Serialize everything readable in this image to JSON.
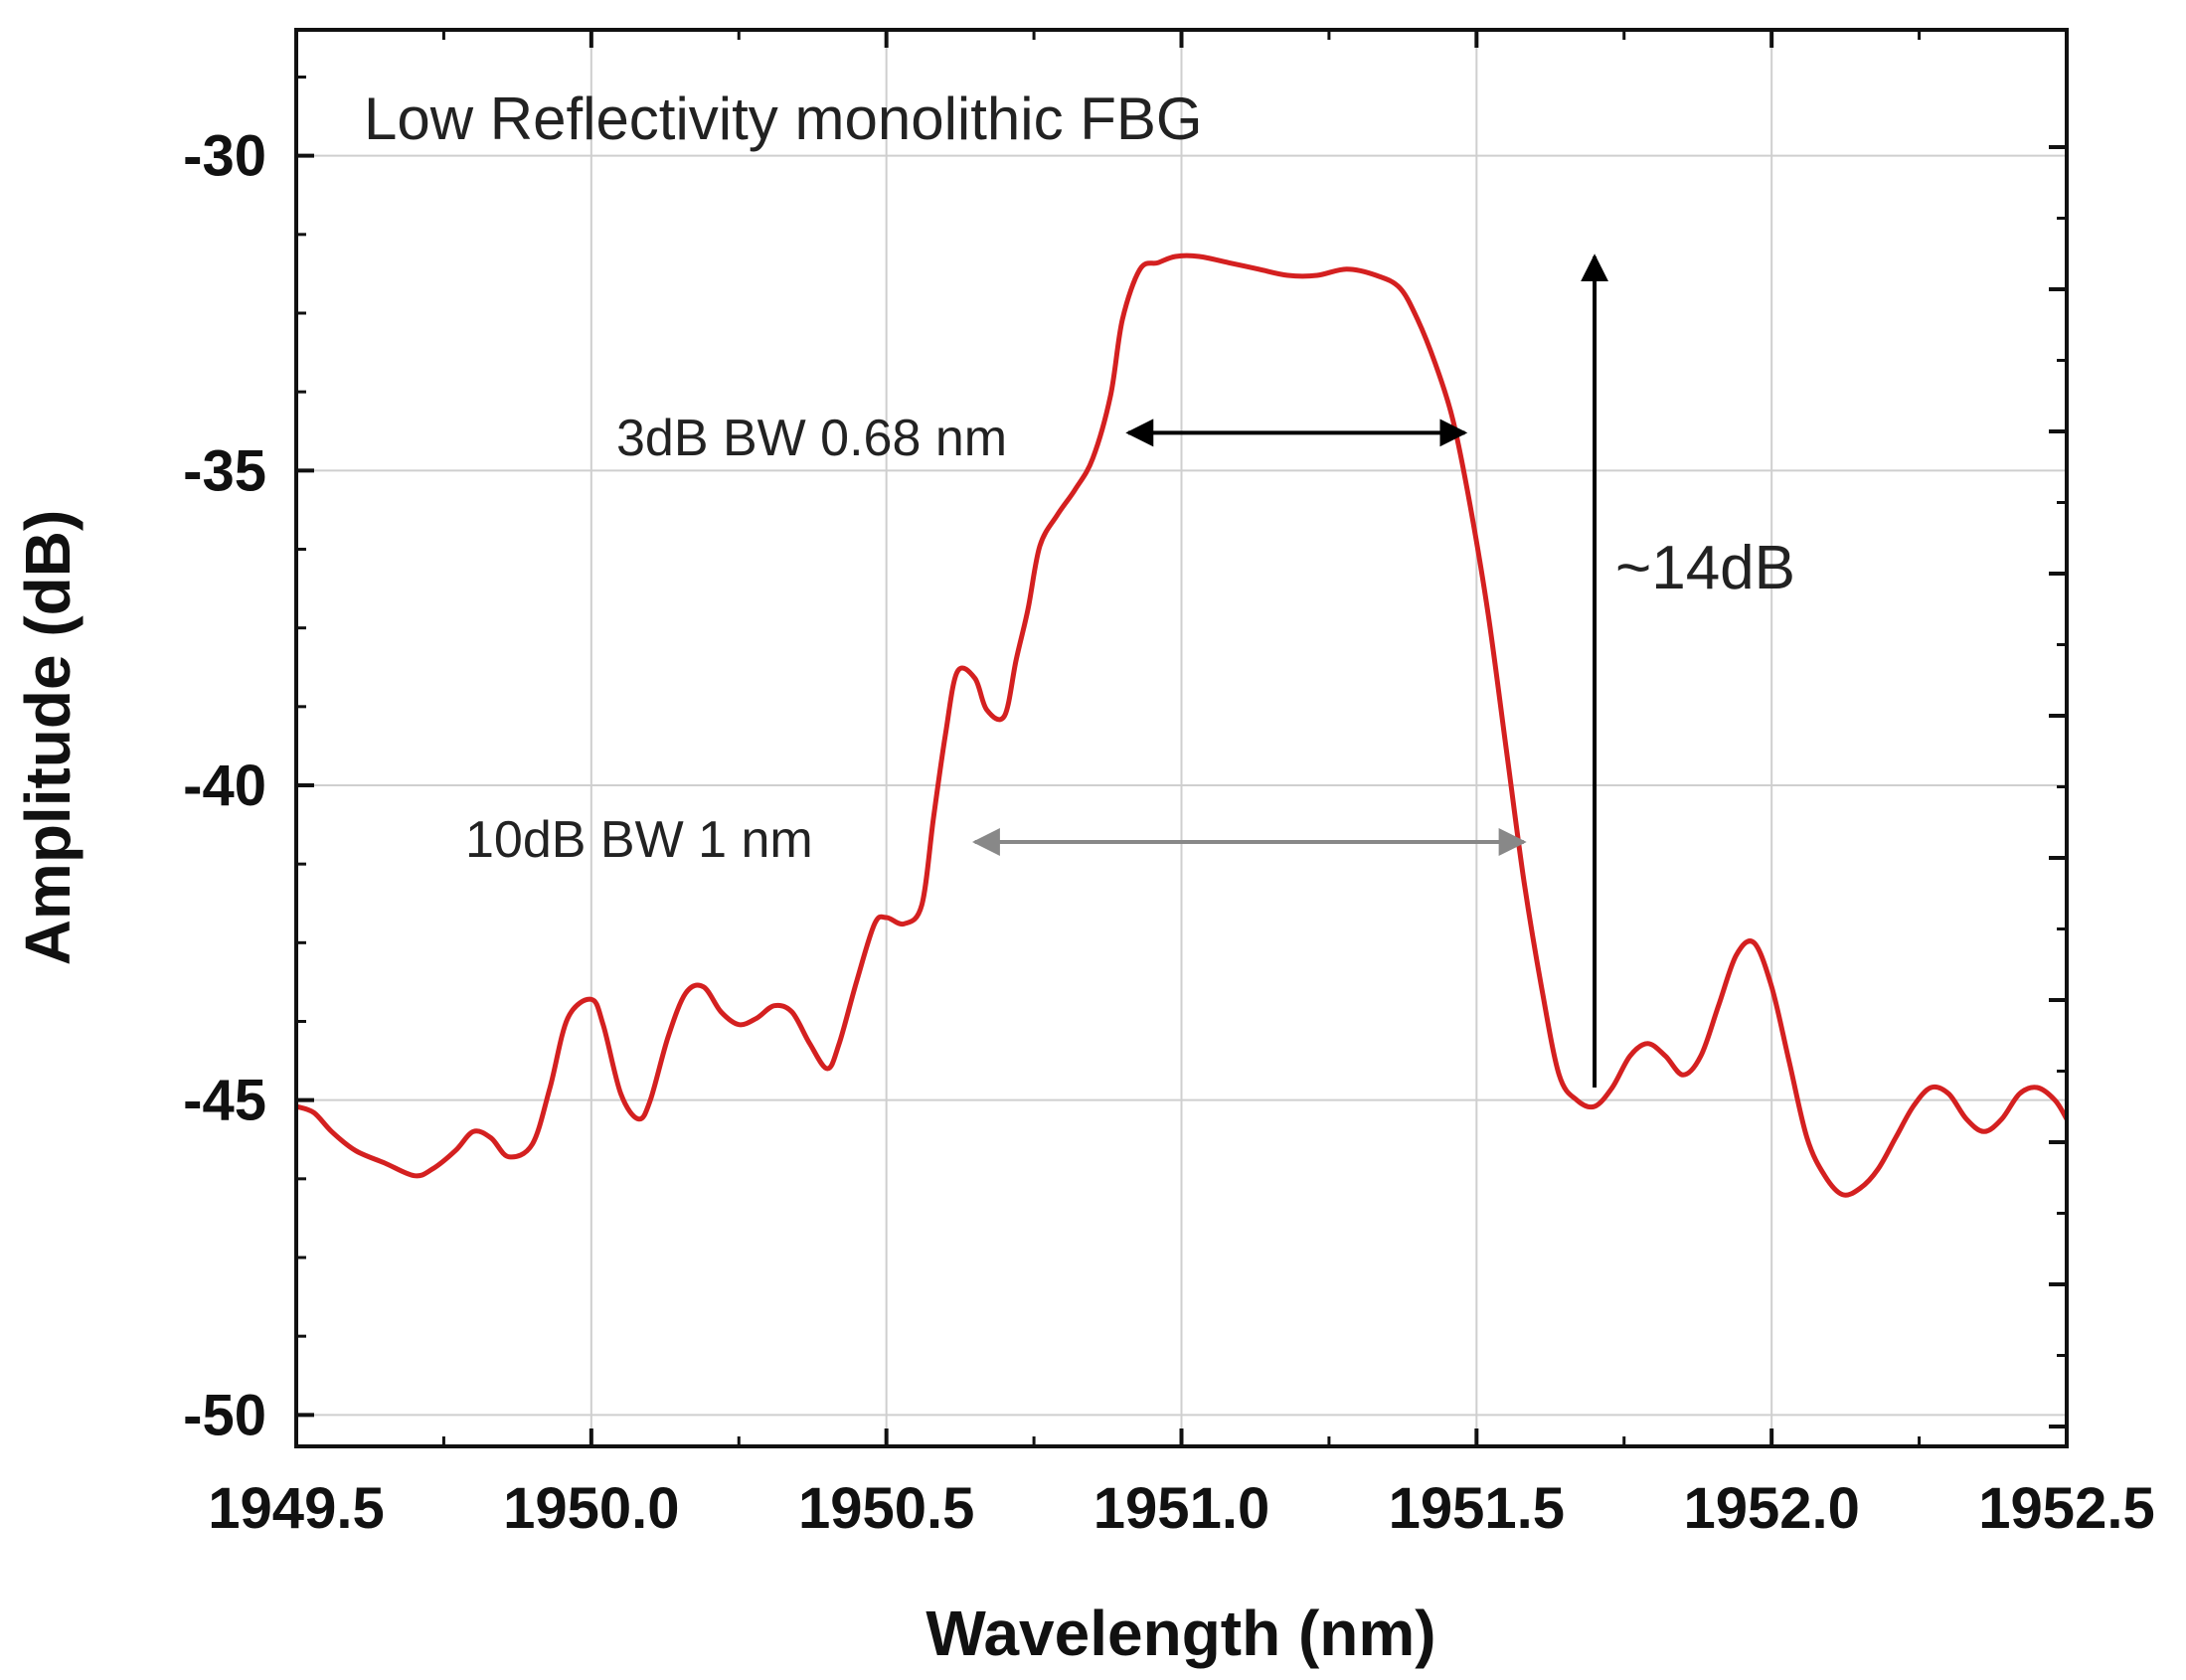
{
  "chart_data": {
    "type": "line",
    "title": "Low Reflectivity monolithic FBG",
    "xlabel": "Wavelength (nm)",
    "ylabel": "Amplitude (dB)",
    "xlim": [
      1949.5,
      1952.5
    ],
    "ylim": [
      -50.5,
      -28
    ],
    "xticks": [
      1949.5,
      1950.0,
      1950.5,
      1951.0,
      1951.5,
      1952.0,
      1952.5
    ],
    "xtick_labels": [
      "1949.5",
      "1950.0",
      "1950.5",
      "1951.0",
      "1951.5",
      "1952.0",
      "1952.5"
    ],
    "yticks": [
      -30,
      -35,
      -40,
      -45,
      -50
    ],
    "ytick_labels": [
      "-30",
      "-35",
      "-40",
      "-45",
      "-50"
    ],
    "grid": true,
    "series": [
      {
        "name": "Low Reflectivity monolithic FBG",
        "color": "#d42020",
        "x": [
          1949.5,
          1949.53,
          1949.56,
          1949.6,
          1949.65,
          1949.7,
          1949.73,
          1949.77,
          1949.8,
          1949.83,
          1949.86,
          1949.9,
          1949.93,
          1949.96,
          1950.0,
          1950.02,
          1950.05,
          1950.08,
          1950.1,
          1950.13,
          1950.16,
          1950.19,
          1950.22,
          1950.25,
          1950.28,
          1950.31,
          1950.34,
          1950.37,
          1950.4,
          1950.42,
          1950.45,
          1950.48,
          1950.5,
          1950.53,
          1950.56,
          1950.58,
          1950.6,
          1950.62,
          1950.65,
          1950.67,
          1950.7,
          1950.72,
          1950.74,
          1950.76,
          1950.79,
          1950.82,
          1950.85,
          1950.88,
          1950.9,
          1950.93,
          1950.96,
          1950.99,
          1951.03,
          1951.08,
          1951.13,
          1951.18,
          1951.23,
          1951.28,
          1951.33,
          1951.37,
          1951.4,
          1951.43,
          1951.46,
          1951.49,
          1951.52,
          1951.55,
          1951.58,
          1951.61,
          1951.64,
          1951.67,
          1951.7,
          1951.73,
          1951.76,
          1951.79,
          1951.82,
          1951.85,
          1951.88,
          1951.91,
          1951.94,
          1951.97,
          1952.0,
          1952.03,
          1952.06,
          1952.09,
          1952.12,
          1952.15,
          1952.18,
          1952.21,
          1952.24,
          1952.27,
          1952.3,
          1952.33,
          1952.36,
          1952.39,
          1952.42,
          1952.45,
          1952.48,
          1952.5
        ],
        "y": [
          -45.1,
          -45.2,
          -45.5,
          -45.8,
          -46.0,
          -46.2,
          -46.1,
          -45.8,
          -45.5,
          -45.6,
          -45.9,
          -45.7,
          -44.8,
          -43.7,
          -43.4,
          -43.8,
          -44.9,
          -45.3,
          -45.0,
          -44.0,
          -43.3,
          -43.2,
          -43.6,
          -43.8,
          -43.7,
          -43.5,
          -43.6,
          -44.1,
          -44.5,
          -44.1,
          -43.1,
          -42.2,
          -42.1,
          -42.2,
          -41.9,
          -40.5,
          -39.2,
          -38.2,
          -38.3,
          -38.8,
          -38.9,
          -38.0,
          -37.2,
          -36.2,
          -35.7,
          -35.3,
          -34.8,
          -33.8,
          -32.6,
          -31.8,
          -31.7,
          -31.6,
          -31.6,
          -31.7,
          -31.8,
          -31.9,
          -31.9,
          -31.8,
          -31.9,
          -32.1,
          -32.6,
          -33.3,
          -34.2,
          -35.6,
          -37.3,
          -39.4,
          -41.5,
          -43.2,
          -44.6,
          -45.0,
          -45.1,
          -44.8,
          -44.3,
          -44.1,
          -44.3,
          -44.6,
          -44.3,
          -43.5,
          -42.7,
          -42.5,
          -43.2,
          -44.4,
          -45.6,
          -46.2,
          -46.5,
          -46.4,
          -46.1,
          -45.6,
          -45.1,
          -44.8,
          -44.9,
          -45.3,
          -45.5,
          -45.3,
          -44.9,
          -44.8,
          -45.0,
          -45.3
        ]
      }
    ],
    "annotations": [
      {
        "text": "3dB BW 0.68 nm",
        "arrow_x": [
          1950.91,
          1951.48
        ],
        "arrow_y": -34.4,
        "arrow_style": "double",
        "color": "#000000"
      },
      {
        "text": "10dB BW 1 nm",
        "arrow_x": [
          1950.65,
          1951.58
        ],
        "arrow_y": -40.9,
        "arrow_style": "double",
        "color": "#888888"
      },
      {
        "text": "~14dB",
        "arrow_x": [
          1951.7,
          1951.7
        ],
        "arrow_y": [
          -44.8,
          -31.6
        ],
        "arrow_style": "single-up",
        "color": "#000000"
      }
    ]
  }
}
